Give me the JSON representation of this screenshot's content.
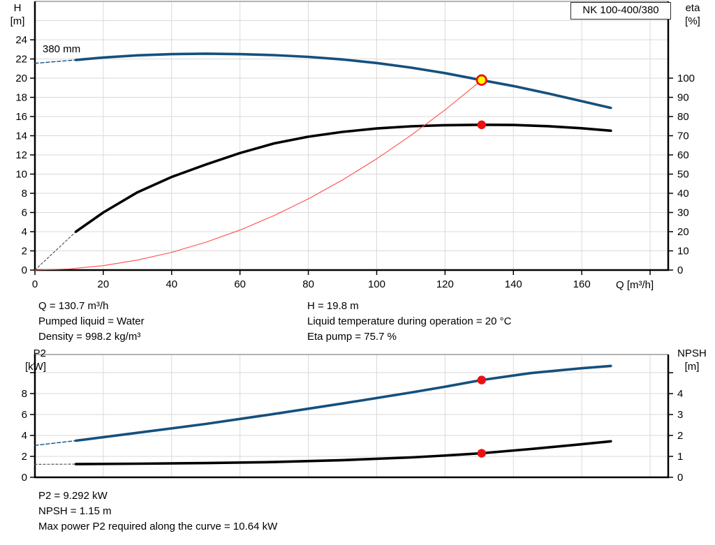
{
  "chart_data": [
    {
      "type": "line",
      "title": "NK 100-400/380",
      "annotations": [
        {
          "text": "380 mm"
        }
      ],
      "x": {
        "label": "Q [m³/h]",
        "min": 0,
        "max": 185.3,
        "tick_labels": [
          0,
          20,
          40,
          60,
          80,
          100,
          120,
          140,
          160
        ],
        "tick_marks": [
          0,
          20,
          40,
          60,
          80,
          100,
          120,
          140,
          160,
          180
        ],
        "grid": [
          20,
          40,
          60,
          80,
          100,
          120,
          140,
          160,
          180
        ]
      },
      "y_left": {
        "label": "H",
        "unit": "[m]",
        "min": 0,
        "max": 28,
        "ticks": [
          0,
          2,
          4,
          6,
          8,
          10,
          12,
          14,
          16,
          18,
          20,
          22,
          24
        ],
        "grid": [
          2,
          4,
          6,
          8,
          10,
          12,
          14,
          16,
          18,
          20,
          22,
          24,
          26
        ]
      },
      "y_right": {
        "label": "eta",
        "unit": "[%]",
        "min": 0,
        "max": 140,
        "ticks": [
          0,
          10,
          20,
          30,
          40,
          50,
          60,
          70,
          80,
          90,
          100
        ]
      },
      "series": [
        {
          "name": "head-curve-dashed",
          "axis": "left",
          "color": "#14507e",
          "width": 1.4,
          "dash": "5 3",
          "points": [
            [
              0,
              21.55
            ],
            [
              12,
              21.9
            ]
          ]
        },
        {
          "name": "head-curve",
          "axis": "left",
          "color": "#14507e",
          "width": 3.6,
          "points": [
            [
              12,
              21.9
            ],
            [
              20,
              22.15
            ],
            [
              30,
              22.38
            ],
            [
              40,
              22.5
            ],
            [
              50,
              22.55
            ],
            [
              60,
              22.5
            ],
            [
              70,
              22.4
            ],
            [
              80,
              22.22
            ],
            [
              90,
              21.95
            ],
            [
              100,
              21.58
            ],
            [
              110,
              21.1
            ],
            [
              120,
              20.52
            ],
            [
              130.7,
              19.8
            ],
            [
              140,
              19.18
            ],
            [
              150,
              18.42
            ],
            [
              160,
              17.6
            ],
            [
              168.5,
              16.9
            ]
          ]
        },
        {
          "name": "efficiency-curve-dashed",
          "axis": "right",
          "color": "#555555",
          "width": 1.2,
          "dash": "3 3",
          "points": [
            [
              0,
              0
            ],
            [
              12,
              20
            ]
          ]
        },
        {
          "name": "efficiency-curve",
          "axis": "right",
          "color": "#000000",
          "width": 3.6,
          "points": [
            [
              12,
              20
            ],
            [
              20,
              30
            ],
            [
              30,
              40.5
            ],
            [
              40,
              48.5
            ],
            [
              50,
              55
            ],
            [
              60,
              61
            ],
            [
              70,
              66
            ],
            [
              80,
              69.5
            ],
            [
              90,
              72
            ],
            [
              100,
              73.8
            ],
            [
              110,
              74.9
            ],
            [
              120,
              75.5
            ],
            [
              130.7,
              75.7
            ],
            [
              140,
              75.6
            ],
            [
              150,
              75
            ],
            [
              160,
              73.9
            ],
            [
              168.5,
              72.6
            ]
          ]
        },
        {
          "name": "affinity-curve",
          "axis": "left",
          "color": "#ff4d4d",
          "width": 1.1,
          "points": [
            [
              0,
              0
            ],
            [
              10,
              0.12
            ],
            [
              20,
              0.46
            ],
            [
              30,
              1.04
            ],
            [
              40,
              1.85
            ],
            [
              50,
              2.9
            ],
            [
              60,
              4.17
            ],
            [
              70,
              5.68
            ],
            [
              80,
              7.42
            ],
            [
              90,
              9.39
            ],
            [
              100,
              11.59
            ],
            [
              110,
              14.03
            ],
            [
              120,
              16.69
            ],
            [
              130.7,
              19.8
            ]
          ]
        }
      ],
      "markers": [
        {
          "name": "duty-point-efficiency",
          "axis": "right",
          "x": 130.7,
          "y": 75.7,
          "r": 6.2,
          "fill": "#ee1010"
        },
        {
          "name": "duty-point-head",
          "axis": "left",
          "x": 130.7,
          "y": 19.8,
          "r": 6.8,
          "fill": "#ffff00",
          "stroke": "#ee1010",
          "stroke_width": 2.8
        }
      ]
    },
    {
      "type": "line",
      "x": {
        "min": 0,
        "max": 185.3,
        "grid": [
          20,
          40,
          60,
          80,
          100,
          120,
          140,
          160,
          180
        ]
      },
      "y_left": {
        "label": "P2",
        "unit": "[kW]",
        "min": 0,
        "max": 11.73,
        "ticks": [
          0,
          2,
          4,
          6,
          8
        ],
        "tick_marks": [
          0,
          2,
          4,
          6,
          8,
          10
        ],
        "grid": [
          2,
          4,
          6,
          8,
          10
        ]
      },
      "y_right": {
        "label": "NPSH",
        "unit": "[m]",
        "min": 0,
        "max": 5.87,
        "ticks": [
          0,
          1,
          2,
          3,
          4
        ],
        "tick_marks": [
          0,
          1,
          2,
          3,
          4,
          5
        ]
      },
      "series": [
        {
          "name": "p2-curve-dashed",
          "axis": "left",
          "color": "#14507e",
          "width": 1.4,
          "dash": "5 3",
          "points": [
            [
              0,
              3.05
            ],
            [
              12,
              3.5
            ]
          ]
        },
        {
          "name": "p2-curve",
          "axis": "left",
          "color": "#14507e",
          "width": 3.6,
          "points": [
            [
              12,
              3.5
            ],
            [
              30,
              4.25
            ],
            [
              50,
              5.1
            ],
            [
              70,
              6.05
            ],
            [
              90,
              7.05
            ],
            [
              110,
              8.1
            ],
            [
              120,
              8.65
            ],
            [
              130.7,
              9.29
            ],
            [
              145,
              9.95
            ],
            [
              160,
              10.42
            ],
            [
              168.5,
              10.64
            ]
          ]
        },
        {
          "name": "npsh-curve-dashed",
          "axis": "right",
          "color": "#555555",
          "width": 1.2,
          "dash": "3 3",
          "points": [
            [
              0,
              0.62
            ],
            [
              12,
              0.63
            ]
          ]
        },
        {
          "name": "npsh-curve",
          "axis": "right",
          "color": "#000000",
          "width": 3.6,
          "points": [
            [
              12,
              0.63
            ],
            [
              30,
              0.65
            ],
            [
              50,
              0.68
            ],
            [
              70,
              0.73
            ],
            [
              90,
              0.82
            ],
            [
              110,
              0.95
            ],
            [
              120,
              1.04
            ],
            [
              130.7,
              1.15
            ],
            [
              145,
              1.35
            ],
            [
              160,
              1.58
            ],
            [
              168.5,
              1.72
            ]
          ]
        }
      ],
      "markers": [
        {
          "name": "duty-point-p2",
          "axis": "left",
          "x": 130.7,
          "y": 9.292,
          "r": 6.2,
          "fill": "#ee1010"
        },
        {
          "name": "duty-point-npsh",
          "axis": "right",
          "x": 130.7,
          "y": 1.15,
          "r": 6.2,
          "fill": "#ee1010"
        }
      ]
    }
  ],
  "info_top": {
    "left": [
      "Q = 130.7 m³/h",
      "Pumped liquid = Water",
      "Density = 998.2 kg/m³"
    ],
    "right": [
      "H = 19.8 m",
      "Liquid temperature during operation = 20 °C",
      "Eta pump = 75.7 %"
    ]
  },
  "info_bottom": [
    "P2 = 9.292 kW",
    "NPSH = 1.15 m",
    "Max power P2 required along the curve = 10.64 kW"
  ],
  "accent_colors": {
    "curve_blue": "#14507e",
    "curve_black": "#000000",
    "affinity_red": "#ff4d4d",
    "duty_red": "#ee1010",
    "duty_yellow": "#ffff00",
    "gridline": "#d9d9d9"
  }
}
